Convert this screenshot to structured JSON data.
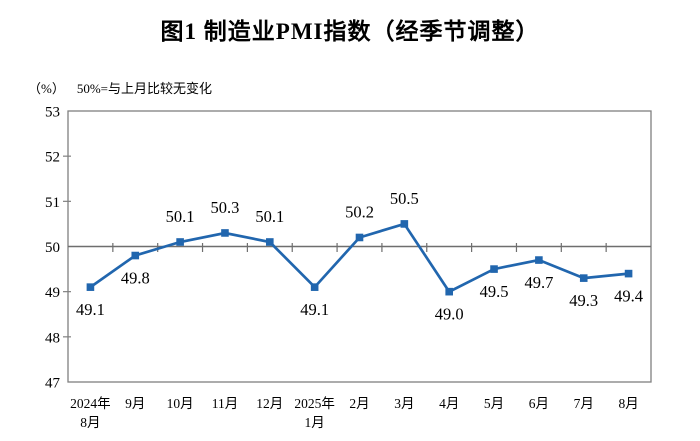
{
  "title": "图1  制造业PMI指数（经季节调整）",
  "unit_note": "（%）",
  "reference_note": "50%=与上月比较无变化",
  "chart_data": {
    "type": "line",
    "title": "图1  制造业PMI指数（经季节调整）",
    "ylabel": "（%）",
    "annotation": "50%=与上月比较无变化",
    "categories": [
      "2024年8月",
      "9月",
      "10月",
      "11月",
      "12月",
      "2025年1月",
      "2月",
      "3月",
      "4月",
      "5月",
      "6月",
      "7月",
      "8月"
    ],
    "category_label_lines": [
      [
        "2024年",
        "8月"
      ],
      [
        "9月"
      ],
      [
        "10月"
      ],
      [
        "11月"
      ],
      [
        "12月"
      ],
      [
        "2025年",
        "1月"
      ],
      [
        "2月"
      ],
      [
        "3月"
      ],
      [
        "4月"
      ],
      [
        "5月"
      ],
      [
        "6月"
      ],
      [
        "7月"
      ],
      [
        "8月"
      ]
    ],
    "values": [
      49.1,
      49.8,
      50.1,
      50.3,
      50.1,
      49.1,
      50.2,
      50.5,
      49.0,
      49.5,
      49.7,
      49.3,
      49.4
    ],
    "point_labels": [
      "49.1",
      "49.8",
      "50.1",
      "50.3",
      "50.1",
      "49.1",
      "50.2",
      "50.5",
      "49.0",
      "49.5",
      "49.7",
      "49.3",
      "49.4"
    ],
    "ylim": [
      47,
      53
    ],
    "yticks": [
      47,
      48,
      49,
      50,
      51,
      52,
      53
    ],
    "reference_line": 50,
    "grid": false,
    "legend_position": "none",
    "line_color": "#2166AE",
    "marker_color": "#2166AE",
    "frame_color": "#808080",
    "reference_line_color": "#6E6E6E",
    "text_color": "#000000"
  }
}
